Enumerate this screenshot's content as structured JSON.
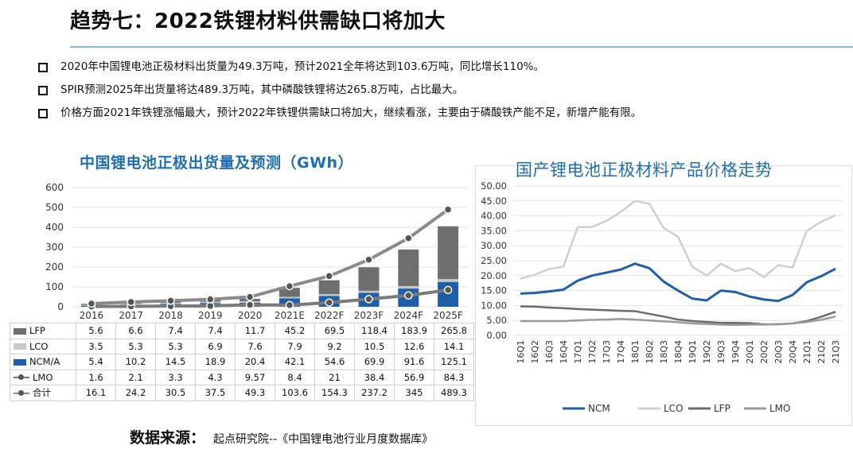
{
  "header": {
    "title": "趋势七：2022铁锂材料供需缺口将加大"
  },
  "bullets": [
    "2020年中国锂电池正极材料出货量为49.3万吨，预计2021全年将达到103.6万吨，同比增长110%。",
    "SPIR预测2025年出货量将达489.3万吨，其中磷酸铁锂将达265.8万吨，占比最大。",
    "价格方面2021年铁锂涨幅最大，预计2022年铁锂供需缺口将加大，继续看涨，主要由于磷酸铁产能不足，新增产能有限。"
  ],
  "source": {
    "label": "数据来源：",
    "text": "起点研究院--《中国锂电池行业月度数据库》"
  },
  "colors": {
    "lfp": "#6e6e6e",
    "lco": "#c8c8c8",
    "ncm": "#1f5fa8",
    "lmo": "#7a7a7a",
    "total": "#8a8a8a",
    "title_blue": "#1f6fb0",
    "price_ncm": "#1f5fa8",
    "price_lco": "#cfcfcf",
    "price_lfp": "#6b6b6b",
    "price_lmo": "#9a9a9a"
  },
  "chart_data": [
    {
      "type": "bar",
      "title": "中国锂电池正极出货量及预测（GWh）",
      "categories": [
        "2016",
        "2017",
        "2018",
        "2019",
        "2020",
        "2021E",
        "2022F",
        "2023F",
        "2024F",
        "2025F"
      ],
      "ylim": [
        0,
        600
      ],
      "yticks": [
        "600",
        "500",
        "400",
        "300",
        "200",
        "100",
        "0"
      ],
      "stacked_series": [
        {
          "name": "NCM/A",
          "values": [
            5.4,
            10.2,
            14.5,
            18.9,
            20.4,
            42.1,
            54.6,
            69.9,
            91.6,
            125.1
          ]
        },
        {
          "name": "LCO",
          "values": [
            3.5,
            5.3,
            5.3,
            6.9,
            7.6,
            7.9,
            9.2,
            10.5,
            12.6,
            14.1
          ]
        },
        {
          "name": "LFP",
          "values": [
            5.6,
            6.6,
            7.4,
            7.4,
            11.7,
            45.2,
            69.5,
            118.4,
            183.9,
            265.8
          ]
        }
      ],
      "line_series": [
        {
          "name": "LMO",
          "values": [
            1.6,
            2.1,
            3.3,
            4.3,
            9.57,
            8.4,
            21,
            38.4,
            56.9,
            84.3
          ]
        },
        {
          "name": "合计",
          "values": [
            16.1,
            24.2,
            30.5,
            37.5,
            49.3,
            103.6,
            154.3,
            237.2,
            345,
            489.3
          ]
        }
      ],
      "table_rows": [
        {
          "label": "LFP",
          "key": "lfp",
          "values": [
            "5.6",
            "6.6",
            "7.4",
            "7.4",
            "11.7",
            "45.2",
            "69.5",
            "118.4",
            "183.9",
            "265.8"
          ]
        },
        {
          "label": "LCO",
          "key": "lco",
          "values": [
            "3.5",
            "5.3",
            "5.3",
            "6.9",
            "7.6",
            "7.9",
            "9.2",
            "10.5",
            "12.6",
            "14.1"
          ]
        },
        {
          "label": "NCM/A",
          "key": "ncm",
          "values": [
            "5.4",
            "10.2",
            "14.5",
            "18.9",
            "20.4",
            "42.1",
            "54.6",
            "69.9",
            "91.6",
            "125.1"
          ]
        },
        {
          "label": "LMO",
          "key": "lmo",
          "values": [
            "1.6",
            "2.1",
            "3.3",
            "4.3",
            "9.57",
            "8.4",
            "21",
            "38.4",
            "56.9",
            "84.3"
          ]
        },
        {
          "label": "合计",
          "key": "total",
          "values": [
            "16.1",
            "24.2",
            "30.5",
            "37.5",
            "49.3",
            "103.6",
            "154.3",
            "237.2",
            "345",
            "489.3"
          ]
        }
      ]
    },
    {
      "type": "line",
      "title": "国产锂电池正极材料产品价格走势",
      "x": [
        "16Q1",
        "16Q2",
        "16Q3",
        "16Q4",
        "17Q1",
        "17Q2",
        "17Q3",
        "17Q4",
        "18Q1",
        "18Q2",
        "18Q3",
        "18Q4",
        "19Q1",
        "19Q2",
        "19Q3",
        "19Q4",
        "20Q1",
        "20Q2",
        "20Q3",
        "20Q4",
        "21Q1",
        "21Q2",
        "21Q3"
      ],
      "ylim": [
        0,
        50
      ],
      "yticks": [
        "50.00",
        "45.00",
        "40.00",
        "35.00",
        "30.00",
        "25.00",
        "20.00",
        "15.00",
        "10.00",
        "5.00",
        "0.00"
      ],
      "legend": [
        "NCM",
        "LCO",
        "LFP",
        "LMO"
      ],
      "series": [
        {
          "name": "NCM",
          "key": "price_ncm",
          "values": [
            14.0,
            14.2,
            14.7,
            15.3,
            18.3,
            20.0,
            21.0,
            22.0,
            24.0,
            22.5,
            18.0,
            15.0,
            12.3,
            11.7,
            15.0,
            14.5,
            13.0,
            12.0,
            11.5,
            13.5,
            17.8,
            19.8,
            22.3
          ]
        },
        {
          "name": "LCO",
          "key": "price_lco",
          "values": [
            19.0,
            20.3,
            22.2,
            23.0,
            36.2,
            36.3,
            38.3,
            41.3,
            45.0,
            44.0,
            36.0,
            33.0,
            23.0,
            20.0,
            24.0,
            21.5,
            22.5,
            19.5,
            23.5,
            22.7,
            35.0,
            38.0,
            40.2
          ]
        },
        {
          "name": "LFP",
          "key": "price_lfp",
          "values": [
            9.7,
            9.6,
            9.3,
            9.1,
            8.8,
            8.6,
            8.4,
            8.2,
            8.1,
            7.2,
            6.3,
            5.3,
            4.8,
            4.5,
            4.2,
            4.2,
            4.1,
            3.7,
            3.7,
            4.0,
            4.8,
            6.2,
            7.9
          ]
        },
        {
          "name": "LMO",
          "key": "price_lmo",
          "values": [
            4.8,
            4.8,
            4.8,
            4.8,
            5.0,
            5.2,
            5.3,
            5.5,
            5.3,
            5.0,
            4.7,
            4.4,
            4.0,
            3.8,
            3.6,
            3.5,
            3.6,
            3.6,
            3.8,
            4.0,
            4.5,
            5.2,
            6.3
          ]
        }
      ]
    }
  ]
}
